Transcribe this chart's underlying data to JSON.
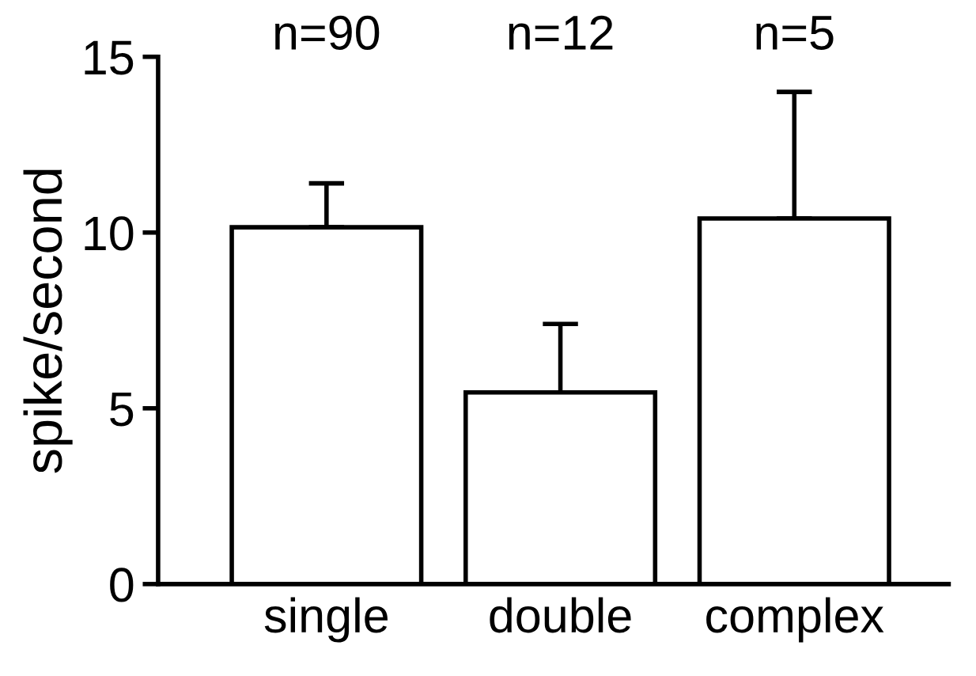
{
  "chart_data": {
    "type": "bar",
    "ylabel": "spike/second",
    "categories": [
      "single",
      "double",
      "complex"
    ],
    "values": [
      10.15,
      5.45,
      10.4
    ],
    "errors": [
      [
        10.15,
        11.4
      ],
      [
        5.45,
        7.4
      ],
      [
        10.4,
        14
      ]
    ],
    "colors": [
      "#ffffff",
      "#ffffff",
      "#ffffff"
    ],
    "annotations": [
      "n=90",
      "n=12",
      "n=5"
    ],
    "ylim": [
      0,
      15
    ],
    "yticks": [
      0,
      5,
      10,
      15
    ],
    "grid": false,
    "legend": false
  }
}
